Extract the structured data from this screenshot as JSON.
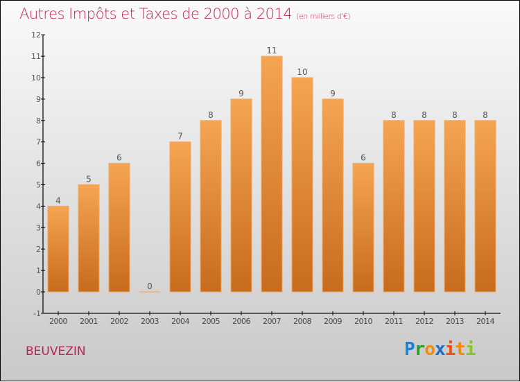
{
  "chart_data": {
    "type": "bar",
    "title": "Autres Impôts et Taxes de 2000 à 2014",
    "subtitle": "(en milliers d'€)",
    "categories": [
      "2000",
      "2001",
      "2002",
      "2003",
      "2004",
      "2005",
      "2006",
      "2007",
      "2008",
      "2009",
      "2010",
      "2011",
      "2012",
      "2013",
      "2014"
    ],
    "values": [
      4,
      5,
      6,
      0,
      7,
      8,
      9,
      11,
      10,
      9,
      6,
      8,
      8,
      8,
      8
    ],
    "yticks": [
      -1,
      0,
      1,
      2,
      3,
      4,
      5,
      6,
      7,
      8,
      9,
      10,
      11,
      12
    ],
    "ylim": [
      -1,
      12
    ],
    "xlabel": "",
    "ylabel": "",
    "bar_color_top": "#f5a552",
    "bar_color_bottom": "#c76b1c"
  },
  "footer": {
    "city": "BEUVEZIN",
    "logo": "Proxiti"
  }
}
